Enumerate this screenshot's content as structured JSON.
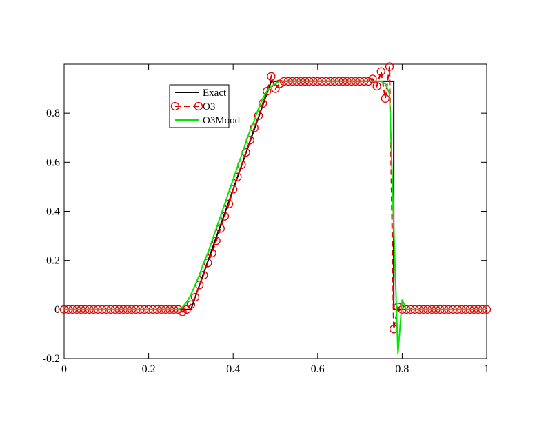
{
  "chart_data": {
    "type": "line",
    "xlim": [
      0,
      1
    ],
    "xticks": [
      0,
      0.2,
      0.4,
      0.6,
      0.8,
      1
    ],
    "ylim": [
      -0.2,
      1.0
    ],
    "yticks": [
      -0.2,
      0,
      0.2,
      0.4,
      0.6,
      0.8
    ],
    "series": [
      {
        "name": "Exact",
        "color": "#000000",
        "x": [
          0,
          0.3,
          0.49,
          0.78,
          0.78,
          1
        ],
        "values": [
          0,
          0,
          0.93,
          0.93,
          0,
          0
        ]
      },
      {
        "name": "O3",
        "color": "#e00000",
        "marker": "circle",
        "dashed": true,
        "x": [
          0,
          0.01,
          0.02,
          0.03,
          0.04,
          0.05,
          0.06,
          0.07,
          0.08,
          0.09,
          0.1,
          0.11,
          0.12,
          0.13,
          0.14,
          0.15,
          0.16,
          0.17,
          0.18,
          0.19,
          0.2,
          0.21,
          0.22,
          0.23,
          0.24,
          0.25,
          0.26,
          0.27,
          0.28,
          0.29,
          0.3,
          0.31,
          0.32,
          0.33,
          0.34,
          0.35,
          0.36,
          0.37,
          0.38,
          0.39,
          0.4,
          0.41,
          0.42,
          0.43,
          0.44,
          0.45,
          0.46,
          0.47,
          0.48,
          0.49,
          0.5,
          0.51,
          0.52,
          0.53,
          0.54,
          0.55,
          0.56,
          0.57,
          0.58,
          0.59,
          0.6,
          0.61,
          0.62,
          0.63,
          0.64,
          0.65,
          0.66,
          0.67,
          0.68,
          0.69,
          0.7,
          0.71,
          0.72,
          0.73,
          0.74,
          0.75,
          0.76,
          0.77,
          0.78,
          0.79,
          0.8,
          0.81,
          0.82,
          0.83,
          0.84,
          0.85,
          0.86,
          0.87,
          0.88,
          0.89,
          0.9,
          0.91,
          0.92,
          0.93,
          0.94,
          0.95,
          0.96,
          0.97,
          0.98,
          0.99,
          1
        ],
        "values": [
          0,
          0,
          0,
          0,
          0,
          0,
          0,
          0,
          0,
          0,
          0,
          0,
          0,
          0,
          0,
          0,
          0,
          0,
          0,
          0,
          0,
          0,
          0,
          0,
          0,
          0,
          0,
          0,
          -0.01,
          0,
          0.02,
          0.05,
          0.1,
          0.14,
          0.19,
          0.23,
          0.28,
          0.33,
          0.38,
          0.43,
          0.49,
          0.54,
          0.59,
          0.64,
          0.69,
          0.74,
          0.79,
          0.84,
          0.89,
          0.95,
          0.9,
          0.92,
          0.93,
          0.93,
          0.93,
          0.93,
          0.93,
          0.93,
          0.93,
          0.93,
          0.93,
          0.93,
          0.93,
          0.93,
          0.93,
          0.93,
          0.93,
          0.93,
          0.93,
          0.93,
          0.93,
          0.93,
          0.93,
          0.94,
          0.91,
          0.97,
          0.86,
          0.99,
          -0.08,
          0.01,
          0,
          0,
          0,
          0,
          0,
          0,
          0,
          0,
          0,
          0,
          0,
          0,
          0,
          0,
          0,
          0,
          0,
          0,
          0,
          0,
          0
        ]
      },
      {
        "name": "O3Mood",
        "color": "#00e800",
        "x": [
          0,
          0.01,
          0.02,
          0.03,
          0.04,
          0.05,
          0.06,
          0.07,
          0.08,
          0.09,
          0.1,
          0.11,
          0.12,
          0.13,
          0.14,
          0.15,
          0.16,
          0.17,
          0.18,
          0.19,
          0.2,
          0.21,
          0.22,
          0.23,
          0.24,
          0.25,
          0.26,
          0.27,
          0.28,
          0.29,
          0.3,
          0.31,
          0.32,
          0.33,
          0.34,
          0.35,
          0.36,
          0.37,
          0.38,
          0.39,
          0.4,
          0.41,
          0.42,
          0.43,
          0.44,
          0.45,
          0.46,
          0.47,
          0.48,
          0.49,
          0.5,
          0.51,
          0.52,
          0.53,
          0.54,
          0.55,
          0.56,
          0.57,
          0.58,
          0.59,
          0.6,
          0.61,
          0.62,
          0.63,
          0.64,
          0.65,
          0.66,
          0.67,
          0.68,
          0.69,
          0.7,
          0.71,
          0.72,
          0.73,
          0.74,
          0.75,
          0.76,
          0.77,
          0.78,
          0.79,
          0.8,
          0.81,
          0.82,
          0.83,
          0.84,
          0.85,
          0.86,
          0.87,
          0.88,
          0.89,
          0.9,
          0.91,
          0.92,
          0.93,
          0.94,
          0.95,
          0.96,
          0.97,
          0.98,
          0.99,
          1
        ],
        "values": [
          0,
          0,
          0,
          0,
          0,
          0,
          0,
          0,
          0,
          0,
          0,
          0,
          0,
          0,
          0,
          0,
          0,
          0,
          0,
          0,
          0,
          0,
          0,
          0,
          0,
          0,
          0,
          0,
          0.01,
          0.03,
          0.06,
          0.1,
          0.14,
          0.19,
          0.23,
          0.28,
          0.33,
          0.38,
          0.43,
          0.48,
          0.53,
          0.58,
          0.63,
          0.68,
          0.73,
          0.77,
          0.82,
          0.86,
          0.89,
          0.91,
          0.92,
          0.93,
          0.93,
          0.93,
          0.93,
          0.93,
          0.93,
          0.93,
          0.93,
          0.93,
          0.93,
          0.93,
          0.93,
          0.93,
          0.93,
          0.93,
          0.93,
          0.93,
          0.93,
          0.93,
          0.93,
          0.93,
          0.93,
          0.93,
          0.93,
          0.93,
          0.92,
          0.88,
          0.34,
          -0.18,
          0.04,
          0,
          0,
          0,
          0,
          0,
          0,
          0,
          0,
          0,
          0,
          0,
          0,
          0,
          0,
          0,
          0,
          0,
          0,
          0,
          0
        ]
      }
    ]
  }
}
